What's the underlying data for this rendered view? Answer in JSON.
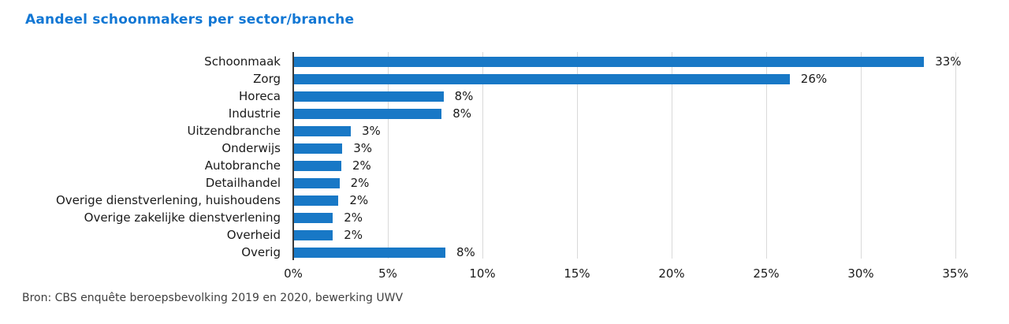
{
  "header": {
    "title": "Aandeel schoonmakers per sector/branche",
    "title_color": "#1277d4"
  },
  "source_note": "Bron: CBS enquête beroepsbevolking 2019 en 2020, bewerking UWV",
  "colors": {
    "bar": "#1878c6",
    "gridline": "#d9d9d9",
    "axis_line": "#3a3a3a",
    "text": "#1a1a1a"
  },
  "chart_data": {
    "type": "bar",
    "orientation": "horizontal",
    "title": "Aandeel schoonmakers per sector/branche",
    "categories": [
      "Schoonmaak",
      "Zorg",
      "Horeca",
      "Industrie",
      "Uitzendbranche",
      "Onderwijs",
      "Autobranche",
      "Detailhandel",
      "Overige dienstverlening, huishoudens",
      "Overige zakelijke dienstverlening",
      "Overheid",
      "Overig"
    ],
    "values": [
      33,
      26,
      8,
      8,
      3,
      3,
      2,
      2,
      2,
      2,
      2,
      8
    ],
    "value_labels": [
      "33%",
      "26%",
      "8%",
      "8%",
      "3%",
      "3%",
      "2%",
      "2%",
      "2%",
      "2%",
      "2%",
      "8%"
    ],
    "bar_lengths_pct": [
      33.3,
      26.2,
      7.9,
      7.8,
      3.0,
      2.55,
      2.5,
      2.4,
      2.35,
      2.05,
      2.05,
      8.0
    ],
    "xlim": [
      0,
      35
    ],
    "x_ticks": [
      0,
      5,
      10,
      15,
      20,
      25,
      30,
      35
    ],
    "x_tick_labels": [
      "0%",
      "5%",
      "10%",
      "15%",
      "20%",
      "25%",
      "30%",
      "35%"
    ],
    "grid": "vertical-only",
    "legend": "none",
    "xlabel": "",
    "ylabel": "",
    "source": "Bron: CBS enquête beroepsbevolking 2019 en 2020, bewerking UWV"
  }
}
